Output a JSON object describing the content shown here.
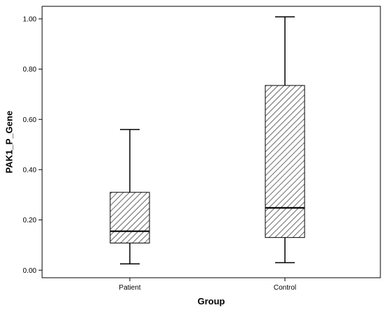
{
  "chart_data": {
    "type": "boxplot",
    "title": "",
    "xlabel": "Group",
    "ylabel": "PAK1_P_Gene",
    "ylim": [
      -0.03,
      1.05
    ],
    "yticks": [
      "0.00",
      "0.20",
      "0.40",
      "0.60",
      "0.80",
      "1.00"
    ],
    "ytick_values": [
      0.0,
      0.2,
      0.4,
      0.6,
      0.8,
      1.0
    ],
    "categories": [
      "Patient",
      "Control"
    ],
    "boxes": [
      {
        "category": "Patient",
        "min": 0.025,
        "q1": 0.108,
        "median": 0.155,
        "q3": 0.31,
        "max": 0.56
      },
      {
        "category": "Control",
        "min": 0.03,
        "q1": 0.13,
        "median": 0.248,
        "q3": 0.735,
        "max": 1.008
      }
    ],
    "grid": false,
    "fill_pattern": "diagonal-hatch",
    "colors": {
      "box_stroke": "#000000",
      "hatch": "#555555",
      "background": "#ffffff"
    }
  }
}
